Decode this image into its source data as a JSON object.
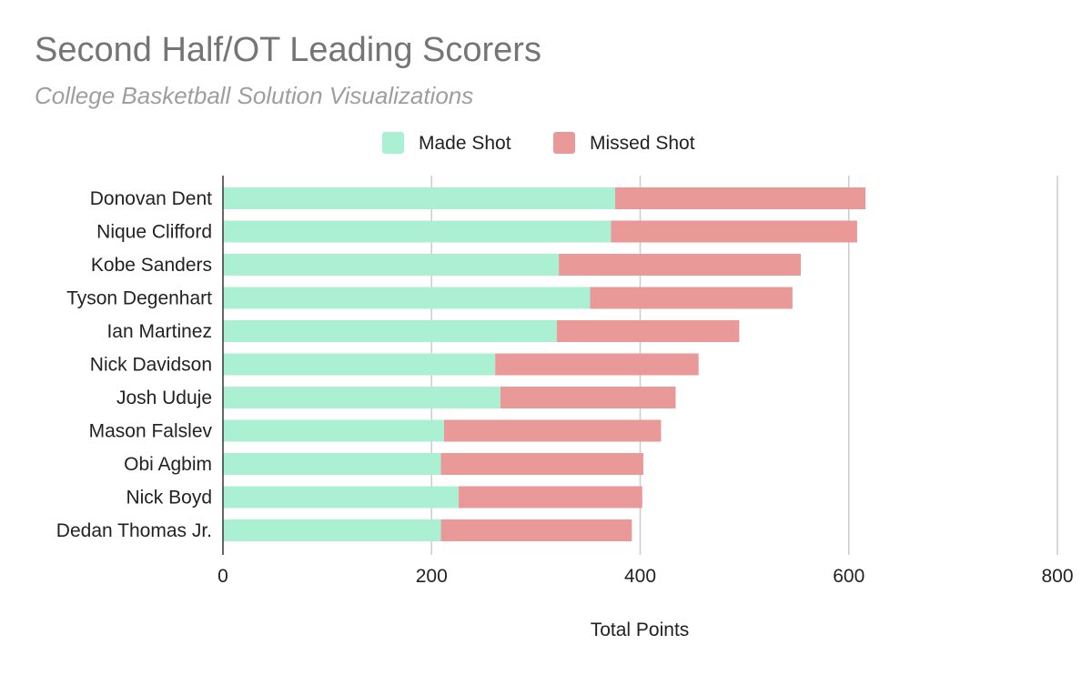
{
  "chart_data": {
    "type": "bar",
    "orientation": "horizontal",
    "stacked": true,
    "title": "Second Half/OT Leading Scorers",
    "subtitle": "College Basketball Solution Visualizations",
    "xlabel": "Total Points",
    "ylabel": "",
    "xlim": [
      0,
      800
    ],
    "xticks": [
      0,
      200,
      400,
      600,
      800
    ],
    "grid": true,
    "legend_position": "top",
    "categories": [
      "Donovan Dent",
      "Nique Clifford",
      "Kobe Sanders",
      "Tyson Degenhart",
      "Ian Martinez",
      "Nick Davidson",
      "Josh Uduje",
      "Mason Falslev",
      "Obi Agbim",
      "Nick Boyd",
      "Dedan Thomas Jr."
    ],
    "series": [
      {
        "name": "Made Shot",
        "color": "#abf0d3",
        "values": [
          376,
          372,
          322,
          352,
          320,
          261,
          266,
          212,
          209,
          226,
          209
        ]
      },
      {
        "name": "Missed Shot",
        "color": "#ea9999",
        "values": [
          240,
          236,
          232,
          194,
          175,
          195,
          168,
          208,
          194,
          176,
          183
        ]
      }
    ]
  }
}
